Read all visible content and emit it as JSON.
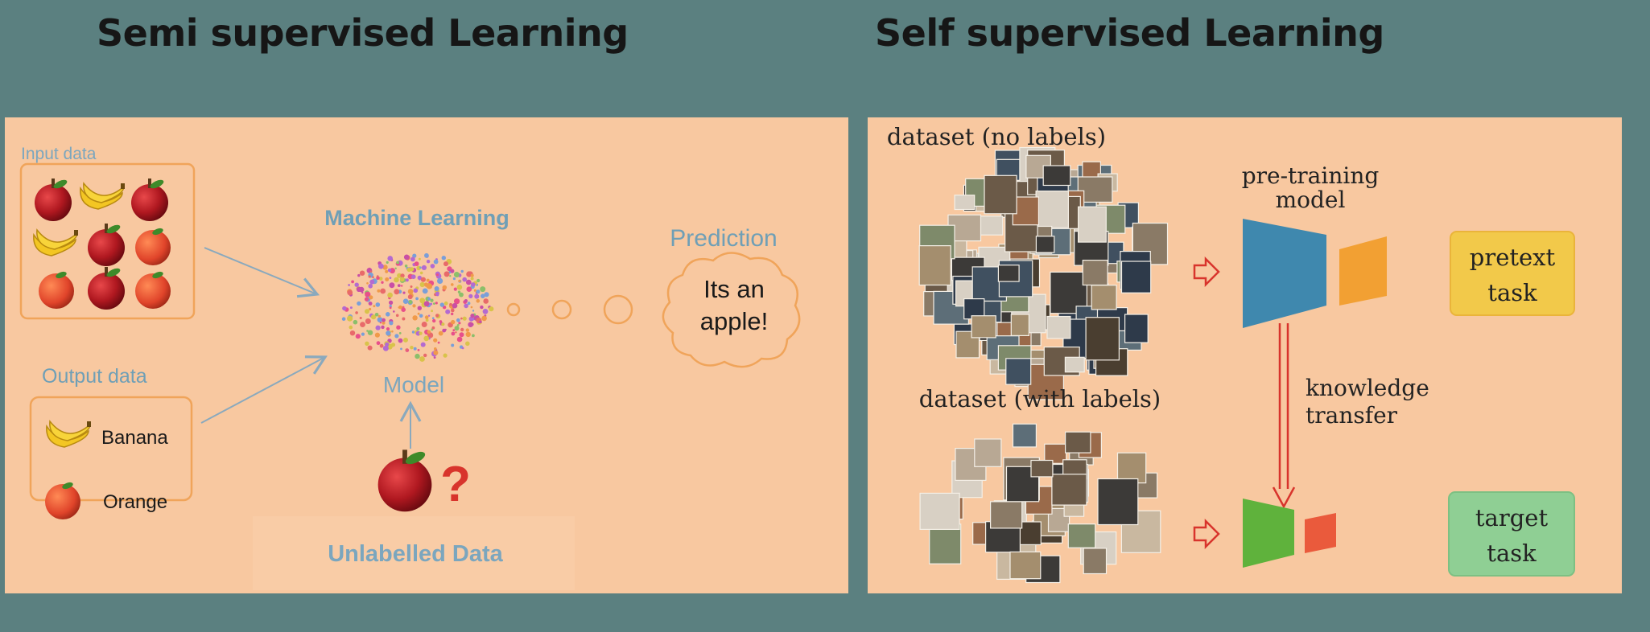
{
  "titles": {
    "left": "Semi supervised Learning",
    "right": "Self supervised Learning"
  },
  "semi": {
    "input_label": "Input data",
    "ml_label": "Machine Learning",
    "model_label": "Model",
    "prediction_label": "Prediction",
    "thought_line1": "Its an",
    "thought_line2": "apple!",
    "output_label": "Output data",
    "output_items": [
      "Banana",
      "Orange"
    ],
    "question_mark": "?",
    "unlabelled_label": "Unlabelled Data",
    "icons": [
      "apple-icon",
      "banana-icon",
      "orange-icon",
      "brain-network-icon",
      "thought-cloud-icon",
      "question-mark-icon"
    ]
  },
  "self": {
    "dataset_no_labels": "dataset (no labels)",
    "dataset_with_labels": "dataset (with labels)",
    "pretraining_line1": "pre-training",
    "pretraining_line2": "model",
    "pretext_line1": "pretext",
    "pretext_line2": "task",
    "knowledge_line1": "knowledge",
    "knowledge_line2": "transfer",
    "target_line1": "target",
    "target_line2": "task",
    "icons": [
      "photo-collage-icon",
      "arrow-right-icon",
      "encoder-icon",
      "head-icon",
      "arrow-down-icon"
    ]
  },
  "colors": {
    "background": "#5b8080",
    "panel": "#f8c8a0",
    "blue_label": "#6f9fb6",
    "encoder_blue": "#3f88ae",
    "pretext_head": "#f2a033",
    "target_encoder": "#5fb23c",
    "target_head": "#ea5a3c",
    "pretext_box": "#f2c94a",
    "target_box": "#8fcf94",
    "arrow_red": "#d8342c"
  }
}
